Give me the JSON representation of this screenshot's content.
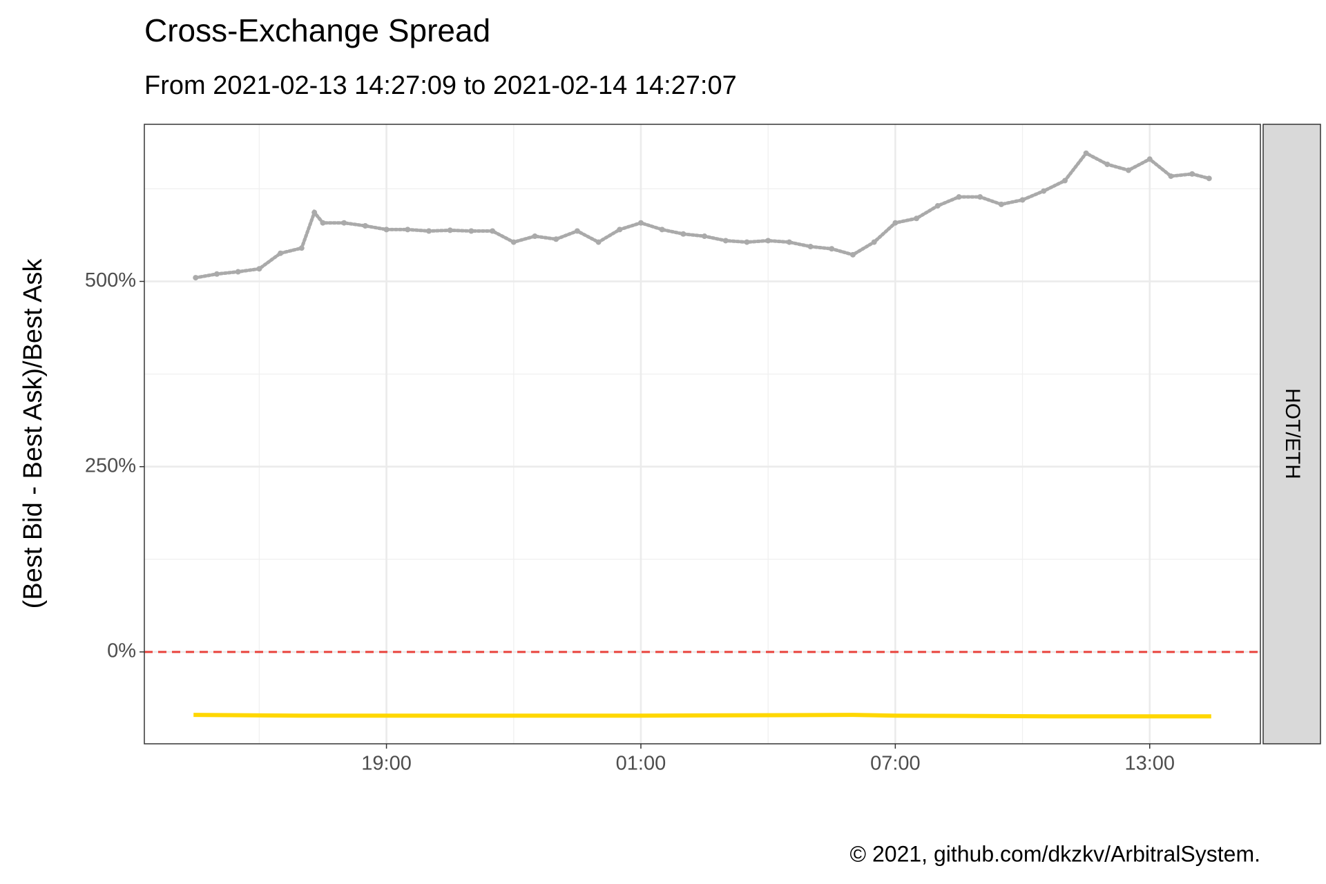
{
  "chart_data": {
    "type": "line",
    "title": "Cross-Exchange Spread",
    "subtitle": "From 2021-02-13 14:27:09 to 2021-02-14 14:27:07",
    "y_label": "(Best Bid - Best Ask)/Best Ask",
    "facet_label": "HOT/ETH",
    "caption": "© 2021, github.com/dkzkv/ArbitralSystem.",
    "xlim": [
      13.29,
      39.61
    ],
    "xticks": [
      {
        "value": 19,
        "label": "19:00"
      },
      {
        "value": 25,
        "label": "01:00"
      },
      {
        "value": 31,
        "label": "07:00"
      },
      {
        "value": 37,
        "label": "13:00"
      }
    ],
    "ylim": [
      -124,
      712
    ],
    "yticks": [
      {
        "value": 0,
        "label": "0%"
      },
      {
        "value": 250,
        "label": "250%"
      },
      {
        "value": 500,
        "label": "500%"
      }
    ],
    "grid": true,
    "reference_line": {
      "value": 0,
      "color": "#e8413a",
      "dashed": true
    },
    "series": [
      {
        "color": "#aaaaaa",
        "mark": "point",
        "x": [
          14.5,
          15,
          15.5,
          16,
          16.5,
          17,
          17.3,
          17.5,
          18,
          18.5,
          19,
          19.5,
          20,
          20.5,
          21,
          21.5,
          22,
          22.5,
          23,
          23.5,
          24,
          24.5,
          25,
          25.5,
          26,
          26.5,
          27,
          27.5,
          28,
          28.5,
          29,
          29.5,
          30,
          30.5,
          31,
          31.5,
          32,
          32.5,
          33,
          33.5,
          34,
          34.5,
          35,
          35.5,
          36,
          36.5,
          37,
          37.5,
          38,
          38.4
        ],
        "values": [
          505,
          510,
          513,
          517,
          538,
          545,
          593,
          579,
          579,
          575,
          570,
          570,
          568,
          569,
          568,
          568,
          553,
          561,
          557,
          568,
          553,
          570,
          579,
          570,
          564,
          561,
          555,
          553,
          555,
          553,
          547,
          544,
          536,
          553,
          579,
          585,
          602,
          614,
          614,
          604,
          610,
          622,
          636,
          673,
          658,
          650,
          665,
          642,
          645,
          639
        ]
      },
      {
        "color": "#ffd700",
        "mark": "line",
        "x": [
          14.45,
          17,
          20,
          25,
          30,
          31,
          35,
          38.45
        ],
        "values": [
          -85,
          -86,
          -86,
          -86,
          -85,
          -86,
          -87,
          -87
        ]
      }
    ]
  }
}
